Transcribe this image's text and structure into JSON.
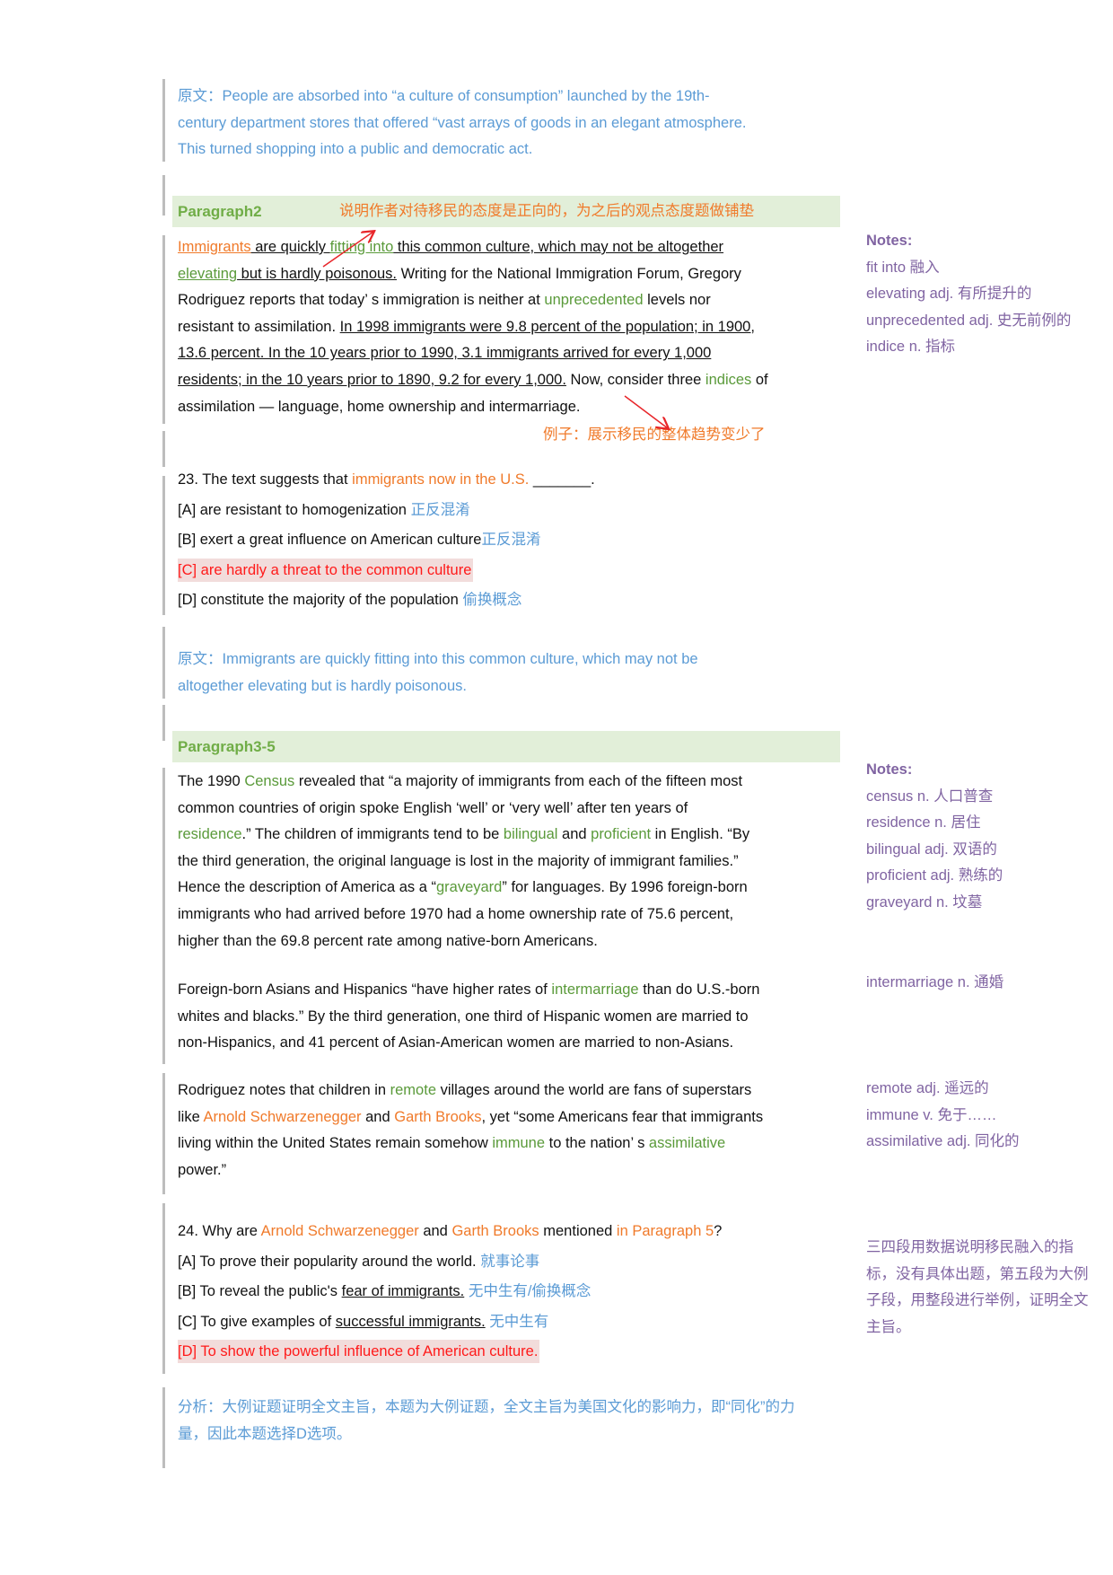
{
  "colors": {
    "blue": "#5b9bd5",
    "orange": "#f07a2a",
    "green": "#5a9a3a",
    "band": "#e2efd9",
    "purple": "#8064a2",
    "red": "#ff1a1a",
    "highlight": "#f2dcdb"
  },
  "original1": {
    "lines": [
      [
        [
          "b",
          "原文：People are absorbed into “a culture of consumption” launched by the 19th-"
        ]
      ],
      [
        [
          "b",
          "century department stores that offered “vast arrays of goods in an elegant atmosphere."
        ]
      ],
      [
        [
          "b",
          "This turned shopping into a public and democratic act."
        ]
      ]
    ]
  },
  "paragraph2": {
    "title": "Paragraph2",
    "annotation": "说明作者对待移民的态度是正向的，为之后的观点态度题做铺垫",
    "lines": [
      [
        [
          "ou",
          "Immigrants"
        ],
        [
          "u",
          " are quickly "
        ],
        [
          "gu",
          "fitting into"
        ],
        [
          "u",
          " this common culture, which may not be altogether"
        ]
      ],
      [
        [
          "gu",
          "elevating"
        ],
        [
          "u",
          " but is hardly poisonous."
        ],
        [
          "n",
          " Writing for the National Immigration Forum, Gregory"
        ]
      ],
      [
        [
          "n",
          "Rodriguez reports that today’ s immigration is neither at "
        ],
        [
          "g",
          "unprecedented"
        ],
        [
          "n",
          " levels nor"
        ]
      ],
      [
        [
          "n",
          "resistant to assimilation. "
        ],
        [
          "u",
          "In 1998 immigrants were 9.8 percent of the population; in 1900,"
        ]
      ],
      [
        [
          "u",
          "13.6 percent. In the 10 years prior to 1990, 3.1 immigrants arrived for every 1,000"
        ]
      ],
      [
        [
          "u",
          "residents; in the 10 years prior to 1890, 9.2 for every 1,000."
        ],
        [
          "n",
          " Now, consider three "
        ],
        [
          "g",
          "indices"
        ],
        [
          "n",
          " of"
        ]
      ],
      [
        [
          "n",
          "assimilation — language, home ownership and intermarriage."
        ]
      ]
    ],
    "example_note": "例子：展示移民的整体趋势变少了"
  },
  "notes1": {
    "heading": "Notes:",
    "items": [
      "fit into 融入",
      "elevating adj. 有所提升的",
      "unprecedented adj. 史无前例的",
      "indice n. 指标"
    ]
  },
  "q23": {
    "lines": [
      [
        [
          "n",
          "23. The text suggests that "
        ],
        [
          "o",
          "immigrants now in the U.S."
        ],
        [
          "n",
          " _______."
        ]
      ],
      [
        [
          "n",
          "[A] are resistant to homogenization "
        ],
        [
          "b",
          "正反混淆"
        ]
      ],
      [
        [
          "n",
          "[B] exert a great influence on American culture"
        ],
        [
          "b",
          "正反混淆"
        ]
      ],
      [
        [
          "r",
          "[C] are hardly a threat to the common culture"
        ]
      ],
      [
        [
          "n",
          "[D] constitute the majority of the population "
        ],
        [
          "b",
          "偷换概念"
        ]
      ]
    ],
    "answer_index": 3
  },
  "original2": {
    "lines": [
      [
        [
          "b",
          "原文：Immigrants are quickly fitting into this common culture, which may not be"
        ]
      ],
      [
        [
          "b",
          "altogether elevating but is hardly poisonous."
        ]
      ]
    ]
  },
  "paragraph35": {
    "title": "Paragraph3-5",
    "p3": [
      [
        [
          "n",
          "The 1990 "
        ],
        [
          "g",
          "Census"
        ],
        [
          "n",
          " revealed that “a majority of immigrants from each of the fifteen most"
        ]
      ],
      [
        [
          "n",
          "common countries of origin spoke English ‘well’ or ‘very well’ after ten years of"
        ]
      ],
      [
        [
          "g",
          "residence"
        ],
        [
          "n",
          ".” The children of immigrants tend to be "
        ],
        [
          "g",
          "bilingual"
        ],
        [
          "n",
          " and "
        ],
        [
          "g",
          "proficient"
        ],
        [
          "n",
          " in English. “By"
        ]
      ],
      [
        [
          "n",
          "the third generation, the original language is lost in the majority of immigrant families.”"
        ]
      ],
      [
        [
          "n",
          "Hence the description of America as a “"
        ],
        [
          "g",
          "graveyard"
        ],
        [
          "n",
          "” for languages. By 1996 foreign-born"
        ]
      ],
      [
        [
          "n",
          "immigrants who had arrived before 1970 had a home ownership rate of 75.6 percent,"
        ]
      ],
      [
        [
          "n",
          "higher than the 69.8 percent rate among native-born Americans."
        ]
      ]
    ],
    "p4": [
      [
        [
          "n",
          "Foreign-born Asians and Hispanics “have higher rates of "
        ],
        [
          "g",
          "intermarriage"
        ],
        [
          "n",
          " than do U.S.-born"
        ]
      ],
      [
        [
          "n",
          "whites and blacks.” By the third generation, one third of Hispanic women are married to"
        ]
      ],
      [
        [
          "n",
          "non-Hispanics, and 41 percent of Asian-American women are married to non-Asians."
        ]
      ]
    ],
    "p5": [
      [
        [
          "n",
          "Rodriguez notes that children in "
        ],
        [
          "g",
          "remote"
        ],
        [
          "n",
          " villages around the world are fans of superstars"
        ]
      ],
      [
        [
          "n",
          "like "
        ],
        [
          "o",
          "Arnold Schwarzenegger"
        ],
        [
          "n",
          " and "
        ],
        [
          "o",
          "Garth Brooks"
        ],
        [
          "n",
          ", yet “some Americans fear that immigrants"
        ]
      ],
      [
        [
          "n",
          "living within the United States remain somehow "
        ],
        [
          "g",
          "immune"
        ],
        [
          "n",
          " to the nation’ s "
        ],
        [
          "g",
          "assimilative"
        ]
      ],
      [
        [
          "n",
          "power.”"
        ]
      ]
    ]
  },
  "notes2": {
    "heading": "Notes:",
    "items": [
      "census n. 人口普查",
      "residence n. 居住",
      "bilingual adj. 双语的",
      "proficient adj. 熟练的",
      "graveyard n. 坟墓"
    ]
  },
  "notes3": {
    "items": [
      "intermarriage n. 通婚"
    ]
  },
  "notes4": {
    "items": [
      "remote adj. 遥远的",
      "immune v. 免于……",
      "assimilative adj. 同化的"
    ]
  },
  "summary": {
    "lines": [
      "三四段用数据说明移民融入的指",
      "标，没有具体出题，第五段为大例",
      "子段，用整段进行举例，证明全文",
      "主旨。"
    ]
  },
  "q24": {
    "lines": [
      [
        [
          "n",
          "24. Why are "
        ],
        [
          "o",
          "Arnold Schwarzenegger"
        ],
        [
          "n",
          " and "
        ],
        [
          "o",
          "Garth Brooks"
        ],
        [
          "n",
          " mentioned "
        ],
        [
          "o",
          "in Paragraph 5"
        ],
        [
          "n",
          "?"
        ]
      ],
      [
        [
          "n",
          "[A] To prove their popularity around the world. "
        ],
        [
          "b",
          "就事论事"
        ]
      ],
      [
        [
          "n",
          "[B] To reveal the public's "
        ],
        [
          "u",
          "fear of immigrants."
        ],
        [
          "b",
          " 无中生有/偷换概念"
        ]
      ],
      [
        [
          "n",
          "[C] To give examples of "
        ],
        [
          "u",
          "successful immigrants."
        ],
        [
          "b",
          " 无中生有"
        ]
      ],
      [
        [
          "r",
          "[D] To show the powerful influence of American culture."
        ]
      ]
    ],
    "answer_index": 4
  },
  "analysis": {
    "lines": [
      [
        [
          "b",
          "分析：大例证题证明全文主旨，本题为大例证题，全文主旨为美国文化的影响力，即“同化”的力"
        ]
      ],
      [
        [
          "b",
          "量，因此本题选择D选项。"
        ]
      ]
    ]
  }
}
